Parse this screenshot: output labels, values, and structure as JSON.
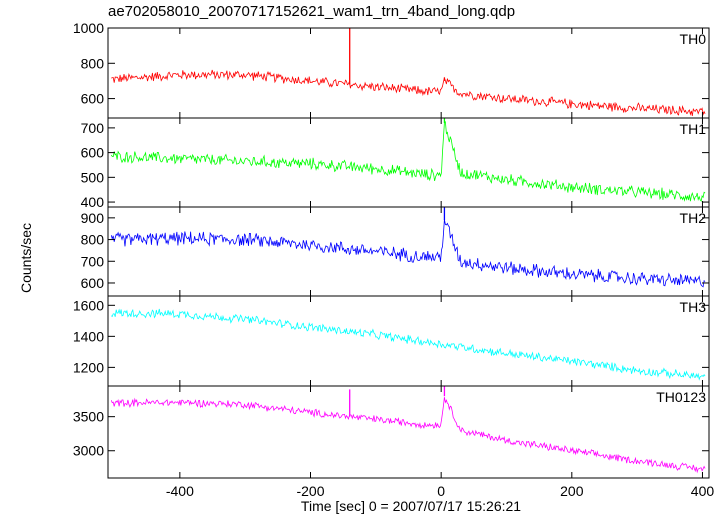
{
  "window": {
    "title": "ae702058010_20070717152621_wam1_trn_4band_long.qdp",
    "ylabel": "Counts/sec",
    "xlabel": "Time [sec] 0 = 2007/07/17 15:26:21"
  },
  "chart_data": [
    {
      "type": "line",
      "panel": "TH0",
      "label": "TH0",
      "color": "#ff0000",
      "xlim": [
        -510,
        410
      ],
      "ylim": [
        490,
        1000
      ],
      "yticks": [
        600,
        800,
        1000
      ],
      "ytick_labels": [
        "600",
        "800",
        "1000"
      ],
      "trend": {
        "x": [
          -500,
          -400,
          -300,
          -200,
          -140,
          -20,
          0,
          5,
          30,
          100,
          200,
          300,
          400
        ],
        "y": [
          710,
          735,
          735,
          700,
          680,
          640,
          640,
          700,
          630,
          600,
          570,
          545,
          525
        ]
      },
      "noise": 28,
      "spikes": [
        {
          "x": -140,
          "y": 1000
        },
        {
          "x": 5,
          "y": 720
        }
      ]
    },
    {
      "type": "line",
      "panel": "TH1",
      "label": "TH1",
      "color": "#00ff00",
      "xlim": [
        -510,
        410
      ],
      "ylim": [
        380,
        740
      ],
      "yticks": [
        400,
        500,
        600,
        700
      ],
      "ytick_labels": [
        "400",
        "500",
        "600",
        "700"
      ],
      "trend": {
        "x": [
          -500,
          -400,
          -300,
          -200,
          -100,
          -20,
          0,
          5,
          30,
          100,
          200,
          300,
          400
        ],
        "y": [
          585,
          575,
          565,
          555,
          535,
          510,
          510,
          720,
          520,
          490,
          460,
          440,
          420
        ]
      },
      "noise": 24,
      "spikes": [
        {
          "x": 5,
          "y": 740
        }
      ]
    },
    {
      "type": "line",
      "panel": "TH2",
      "label": "TH2",
      "color": "#0000ff",
      "xlim": [
        -510,
        410
      ],
      "ylim": [
        540,
        950
      ],
      "yticks": [
        600,
        700,
        800,
        900
      ],
      "ytick_labels": [
        "600",
        "700",
        "800",
        "900"
      ],
      "trend": {
        "x": [
          -500,
          -400,
          -300,
          -200,
          -100,
          -20,
          0,
          5,
          30,
          100,
          200,
          300,
          400
        ],
        "y": [
          800,
          805,
          800,
          775,
          745,
          720,
          720,
          890,
          700,
          670,
          640,
          620,
          605
        ]
      },
      "noise": 32,
      "spikes": [
        {
          "x": 5,
          "y": 950
        }
      ]
    },
    {
      "type": "line",
      "panel": "TH3",
      "label": "TH3",
      "color": "#00ffff",
      "xlim": [
        -510,
        410
      ],
      "ylim": [
        1080,
        1660
      ],
      "yticks": [
        1200,
        1400,
        1600
      ],
      "ytick_labels": [
        "1200",
        "1400",
        "1600"
      ],
      "trend": {
        "x": [
          -500,
          -400,
          -300,
          -200,
          -100,
          0,
          100,
          200,
          300,
          400
        ],
        "y": [
          1550,
          1545,
          1510,
          1460,
          1410,
          1350,
          1290,
          1240,
          1180,
          1140
        ]
      },
      "noise": 28,
      "spikes": []
    },
    {
      "type": "line",
      "panel": "TH0123",
      "label": "TH0123",
      "color": "#ff00ff",
      "xlim": [
        -510,
        410
      ],
      "ylim": [
        2600,
        3950
      ],
      "yticks": [
        3000,
        3500
      ],
      "ytick_labels": [
        "3000",
        "3500"
      ],
      "trend": {
        "x": [
          -500,
          -400,
          -300,
          -200,
          -140,
          -20,
          0,
          5,
          30,
          100,
          200,
          300,
          400
        ],
        "y": [
          3700,
          3710,
          3680,
          3560,
          3500,
          3380,
          3380,
          3800,
          3300,
          3150,
          3000,
          2850,
          2730
        ]
      },
      "noise": 55,
      "spikes": [
        {
          "x": -140,
          "y": 3900
        },
        {
          "x": 5,
          "y": 3950
        }
      ]
    }
  ],
  "x_axis": {
    "ticks": [
      -400,
      -200,
      0,
      200,
      400
    ],
    "tick_labels": [
      "-400",
      "-200",
      "0",
      "200",
      "400"
    ]
  }
}
